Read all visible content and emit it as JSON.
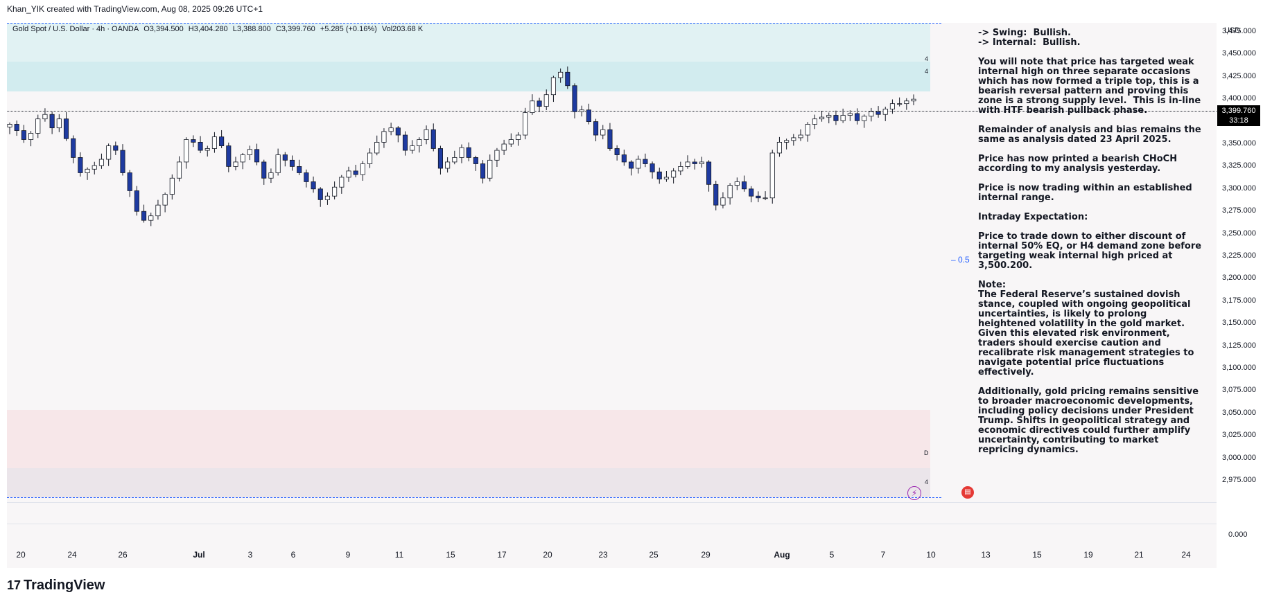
{
  "header": {
    "title": "Khan_YIK created with TradingView.com, Aug 08, 2025 09:26 UTC+1"
  },
  "legend": {
    "symbol": "Gold Spot / U.S. Dollar · 4h · OANDA",
    "open": "O3,394.500",
    "high": "H3,404.280",
    "low": "L3,388.800",
    "close": "C3,399.760",
    "change": "+5.285 (+0.16%)",
    "volume": "Vol203.68 K"
  },
  "annotation": {
    "swing": "-> Swing:  Bullish.",
    "internal": "-> Internal:  Bullish.",
    "p1": "You will note that price has targeted weak internal high on three separate occasions which has now formed a triple top, this is a bearish reversal pattern and proving this zone is a strong supply level.  This is in-line with HTF bearish pullback phase.",
    "p2": "Remainder of analysis and bias remains the same as analysis dated 23 April 2025.",
    "p3": "Price has now printed a bearish CHoCH according to my analysis yesterday.",
    "p4": "Price is now trading within an established internal range.",
    "p5": "Intraday Expectation:",
    "p6": "Price to trade down to either discount of internal 50% EQ, or H4 demand zone before targeting weak internal high priced at 3,500.200.",
    "note_title": "Note:",
    "p7": "The Federal Reserve’s sustained dovish stance, coupled with ongoing geopolitical uncertainties, is likely to prolong heightened volatility in the gold market. Given this elevated risk environment, traders should exercise caution and recalibrate risk management strategies to navigate potential price fluctuations effectively.",
    "p8": "Additionally, gold pricing remains sensitive to broader macroeconomic developments, including policy decisions under President Trump. Shifts in geopolitical strategy and economic directives could further amplify uncertainty, contributing to market repricing dynamics."
  },
  "fib_label": "0.5",
  "zone_tags": {
    "supply_top": "4",
    "supply_bottom": "4",
    "demand_top": "D",
    "demand_bottom": "4"
  },
  "axis": {
    "currency": "USD",
    "current_price": "3,399.760",
    "countdown": "33:18",
    "volume_zero": "0.000"
  },
  "brand": {
    "name": "TradingView",
    "logo": "17"
  },
  "colors": {
    "bull": "#ffffff",
    "bear": "#1e3aa0",
    "wick": "#131722",
    "supply": "#e1f2f3",
    "demand": "#f7e7e9",
    "dash": "#2962ff"
  },
  "chart_data": {
    "type": "candlestick",
    "timeframe": "4h",
    "ylim": [
      2955,
      3485
    ],
    "y_ticks": [
      "3,475.000",
      "3,450.000",
      "3,425.000",
      "3,400.000",
      "3,375.000",
      "3,350.000",
      "3,325.000",
      "3,300.000",
      "3,275.000",
      "3,250.000",
      "3,225.000",
      "3,200.000",
      "3,175.000",
      "3,150.000",
      "3,125.000",
      "3,100.000",
      "3,075.000",
      "3,050.000",
      "3,025.000",
      "3,000.000",
      "2,975.000"
    ],
    "x_ticks": [
      "20",
      "24",
      "26",
      "Jul",
      "3",
      "6",
      "9",
      "11",
      "15",
      "17",
      "20",
      "23",
      "25",
      "29",
      "Aug",
      "5",
      "7",
      "10",
      "13",
      "15",
      "19",
      "21",
      "24"
    ],
    "supply_zone": [
      3421,
      3485
    ],
    "demand_zone": [
      2973,
      3046
    ],
    "close_path": [
      3372,
      3365,
      3355,
      3362,
      3378,
      3383,
      3368,
      3378,
      3356,
      3335,
      3318,
      3322,
      3326,
      3333,
      3348,
      3343,
      3318,
      3298,
      3275,
      3265,
      3270,
      3282,
      3294,
      3312,
      3330,
      3355,
      3352,
      3343,
      3345,
      3358,
      3348,
      3325,
      3330,
      3338,
      3344,
      3330,
      3312,
      3318,
      3338,
      3332,
      3325,
      3318,
      3308,
      3300,
      3288,
      3292,
      3302,
      3313,
      3320,
      3316,
      3328,
      3340,
      3352,
      3364,
      3368,
      3360,
      3343,
      3348,
      3355,
      3366,
      3345,
      3323,
      3330,
      3335,
      3346,
      3335,
      3328,
      3312,
      3332,
      3343,
      3350,
      3355,
      3360,
      3385,
      3398,
      3392,
      3405,
      3424,
      3430,
      3415,
      3386,
      3388,
      3375,
      3360,
      3366,
      3345,
      3338,
      3330,
      3323,
      3333,
      3328,
      3319,
      3311,
      3313,
      3320,
      3325,
      3330,
      3328,
      3330,
      3305,
      3282,
      3290,
      3304,
      3308,
      3300,
      3292,
      3290,
      3290,
      3340,
      3352,
      3354,
      3357,
      3360,
      3372,
      3378,
      3380,
      3382,
      3376,
      3382,
      3384,
      3376,
      3381,
      3386,
      3383,
      3389,
      3395,
      3395,
      3398,
      3400
    ]
  }
}
